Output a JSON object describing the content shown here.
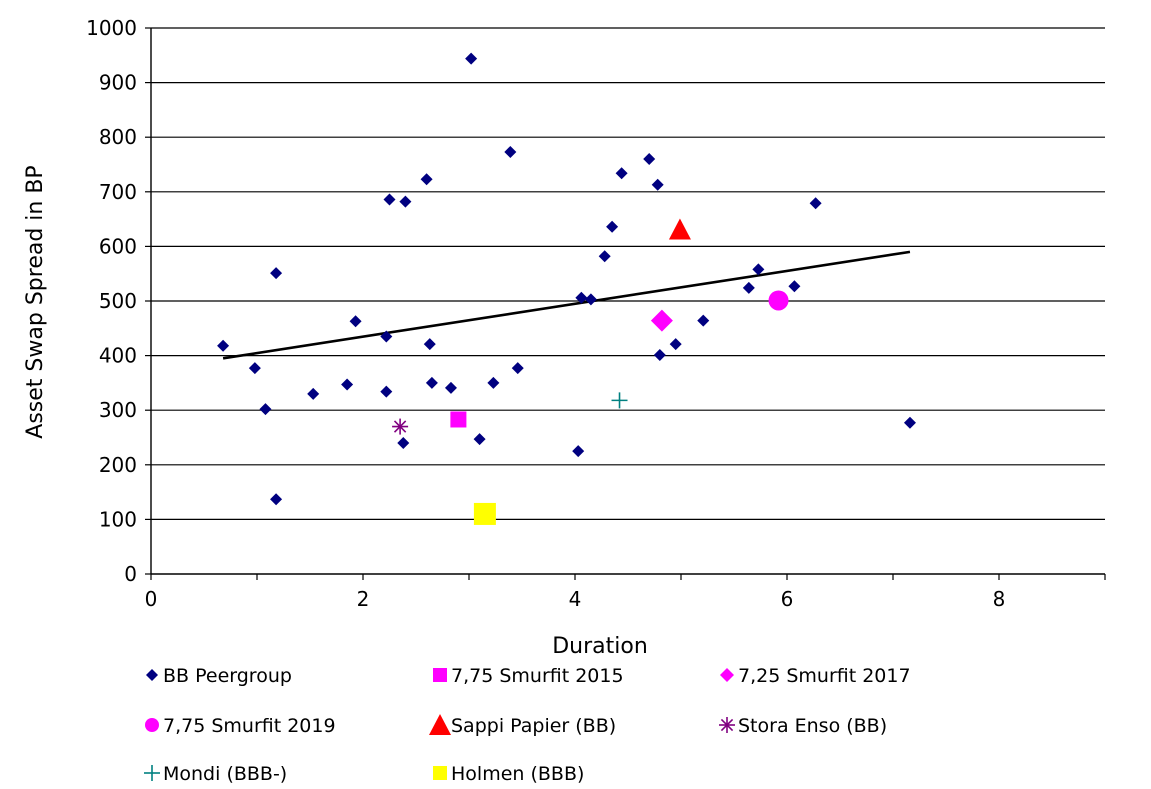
{
  "chart_data": {
    "type": "scatter",
    "xlabel": "Duration",
    "ylabel": "Asset Swap Spread in BP",
    "xlim": [
      0,
      9
    ],
    "ylim": [
      0,
      1000
    ],
    "x_ticks": [
      0,
      2,
      4,
      6,
      8
    ],
    "y_ticks": [
      0,
      100,
      200,
      300,
      400,
      500,
      600,
      700,
      800,
      900,
      1000
    ],
    "grid": "horizontal",
    "legend_position": "bottom",
    "series": [
      {
        "name": "BB Peergroup",
        "marker": "diamond-small",
        "color": "#000080",
        "points": [
          [
            0.68,
            418
          ],
          [
            0.98,
            377
          ],
          [
            1.08,
            302
          ],
          [
            1.18,
            137
          ],
          [
            1.18,
            551
          ],
          [
            1.53,
            330
          ],
          [
            1.85,
            347
          ],
          [
            1.93,
            463
          ],
          [
            2.22,
            334
          ],
          [
            2.22,
            435
          ],
          [
            2.25,
            686
          ],
          [
            2.38,
            240
          ],
          [
            2.4,
            682
          ],
          [
            2.6,
            723
          ],
          [
            2.63,
            421
          ],
          [
            2.65,
            350
          ],
          [
            2.83,
            341
          ],
          [
            3.02,
            944
          ],
          [
            3.1,
            247
          ],
          [
            3.23,
            350
          ],
          [
            3.39,
            773
          ],
          [
            3.46,
            377
          ],
          [
            4.03,
            225
          ],
          [
            4.06,
            506
          ],
          [
            4.15,
            503
          ],
          [
            4.28,
            582
          ],
          [
            4.35,
            636
          ],
          [
            4.44,
            734
          ],
          [
            4.7,
            760
          ],
          [
            4.78,
            713
          ],
          [
            4.8,
            401
          ],
          [
            4.95,
            421
          ],
          [
            5.21,
            464
          ],
          [
            5.64,
            524
          ],
          [
            5.73,
            558
          ],
          [
            6.07,
            527
          ],
          [
            6.27,
            679
          ],
          [
            7.16,
            277
          ]
        ]
      },
      {
        "name": "7,75 Smurfit 2015",
        "marker": "square",
        "color": "#ff00ff",
        "points": [
          [
            2.9,
            283
          ]
        ]
      },
      {
        "name": "7,25 Smurfit 2017",
        "marker": "diamond",
        "color": "#ff00ff",
        "points": [
          [
            4.82,
            464
          ]
        ]
      },
      {
        "name": "7,75 Smurfit 2019",
        "marker": "circle",
        "color": "#ff00ff",
        "points": [
          [
            5.92,
            501
          ]
        ]
      },
      {
        "name": "Sappi Papier (BB)",
        "marker": "triangle",
        "color": "#ff0000",
        "points": [
          [
            4.99,
            631
          ]
        ]
      },
      {
        "name": "Stora Enso (BB)",
        "marker": "star",
        "color": "#800080",
        "points": [
          [
            2.35,
            270
          ]
        ]
      },
      {
        "name": "Mondi (BBB-)",
        "marker": "plus",
        "color": "#008080",
        "points": [
          [
            4.42,
            318
          ]
        ]
      },
      {
        "name": "Holmen (BBB)",
        "marker": "square-large",
        "color": "#ffff00",
        "points": [
          [
            3.15,
            110
          ]
        ]
      }
    ],
    "trendline": {
      "color": "#000000",
      "from": [
        0.68,
        395
      ],
      "to": [
        7.16,
        590
      ]
    }
  }
}
